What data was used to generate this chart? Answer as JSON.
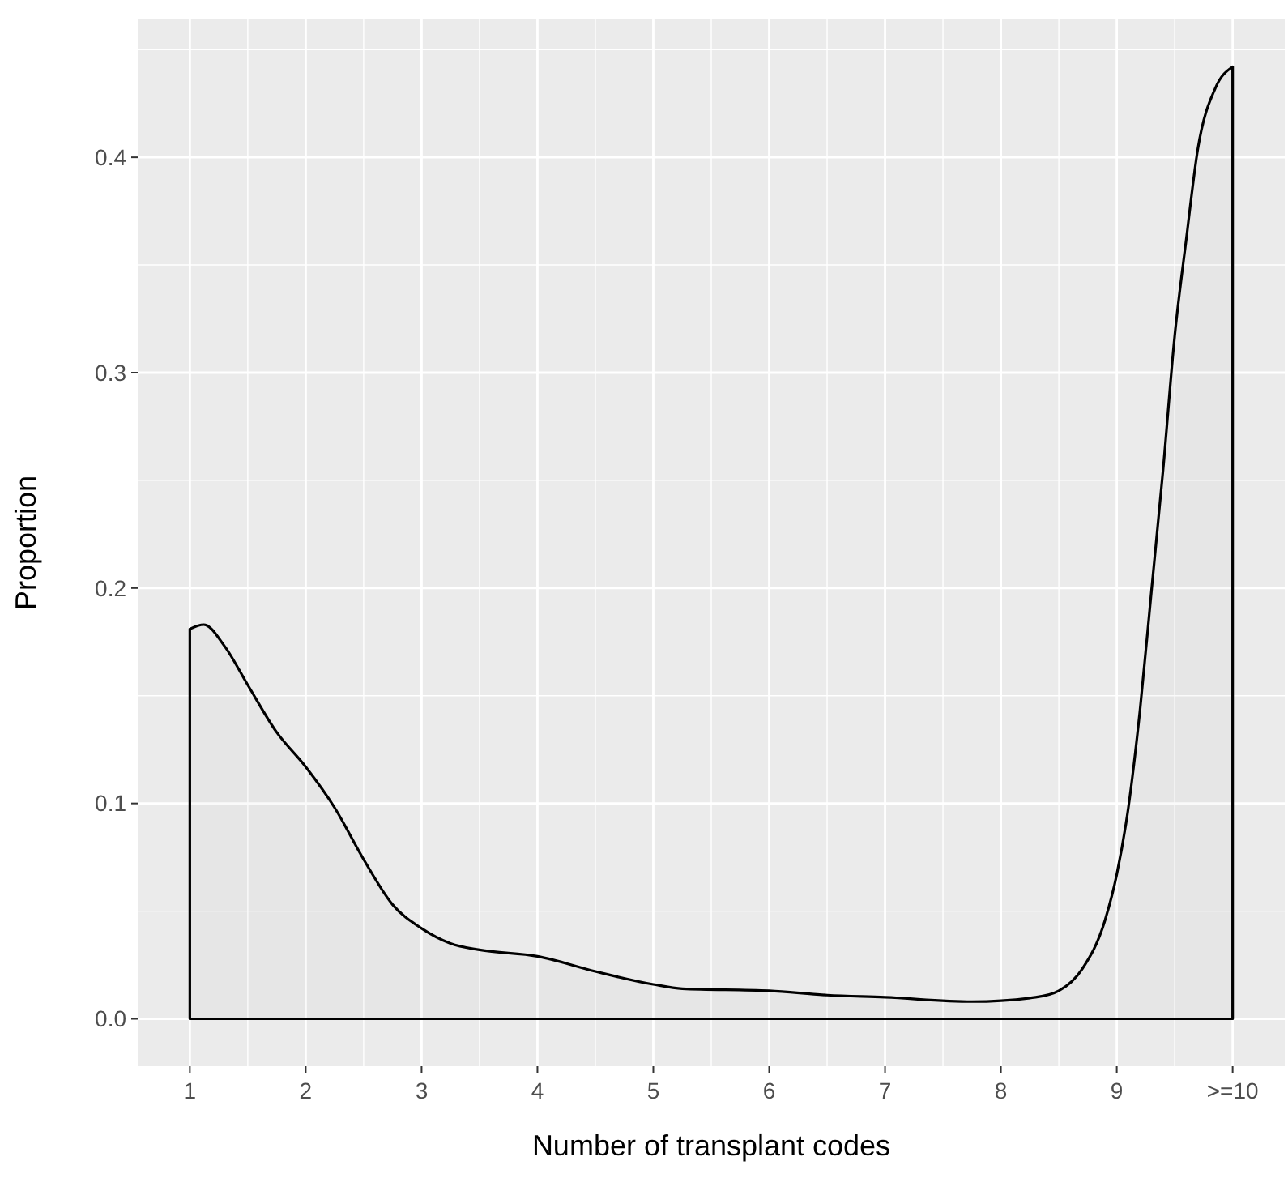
{
  "chart_data": {
    "type": "area",
    "xlabel": "Number of transplant codes",
    "ylabel": "Proportion",
    "x": [
      1,
      1.12,
      1.3,
      1.5,
      1.75,
      2,
      2.25,
      2.5,
      2.75,
      3,
      3.25,
      3.5,
      4,
      4.5,
      5,
      5.25,
      6,
      6.5,
      7,
      7.75,
      8.3,
      8.5,
      8.7,
      8.9,
      9,
      9.1,
      9.2,
      9.3,
      9.4,
      9.5,
      9.6,
      9.7,
      9.85,
      10
    ],
    "series": [
      {
        "color": "#000000",
        "values": [
          0.181,
          0.183,
          0.173,
          0.155,
          0.133,
          0.117,
          0.098,
          0.074,
          0.053,
          0.042,
          0.035,
          0.032,
          0.029,
          0.022,
          0.016,
          0.014,
          0.013,
          0.011,
          0.01,
          0.008,
          0.01,
          0.013,
          0.023,
          0.046,
          0.067,
          0.098,
          0.143,
          0.199,
          0.255,
          0.317,
          0.362,
          0.404,
          0.432,
          0.442
        ]
      }
    ],
    "xlim": [
      0.55,
      10.45
    ],
    "ylim": [
      -0.022,
      0.464
    ],
    "xticks": [
      1,
      2,
      3,
      4,
      5,
      6,
      7,
      8,
      9,
      {
        "value": 10,
        "label": ">=10"
      }
    ],
    "yticks": [
      {
        "value": 0,
        "label": "0.0"
      },
      0.1,
      0.2,
      0.3,
      0.4
    ],
    "grid": true
  }
}
